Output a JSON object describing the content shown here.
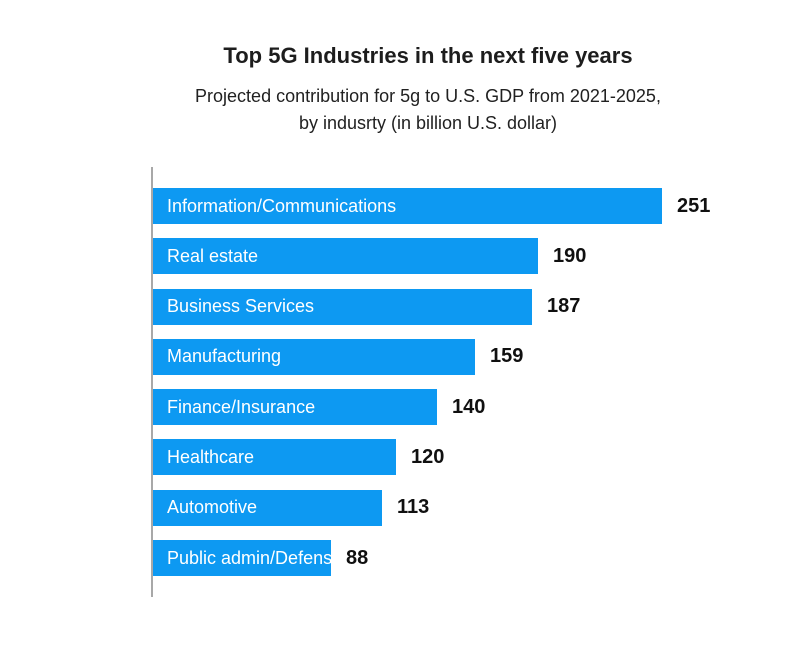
{
  "header": {
    "title": "Top 5G Industries in the next five years",
    "subtitle_line1": "Projected contribution for 5g to U.S. GDP from 2021-2025,",
    "subtitle_line2": "by indusrty (in billion U.S. dollar)"
  },
  "chart_data": {
    "type": "bar",
    "orientation": "horizontal",
    "title": "Top 5G Industries in the next five years",
    "subtitle": "Projected contribution for 5g to U.S. GDP from 2021-2025, by indusrty (in billion U.S. dollar)",
    "categories": [
      "Information/Communications",
      "Real estate",
      "Business Services",
      "Manufacturing",
      "Finance/Insurance",
      "Healthcare",
      "Automotive",
      "Public admin/Defense"
    ],
    "values": [
      251,
      190,
      187,
      159,
      140,
      120,
      113,
      88
    ],
    "xlabel": "",
    "ylabel": "",
    "xlim": [
      0,
      251
    ],
    "grid": false,
    "legend": false,
    "value_labels_position": "end-of-bar",
    "bar_color": "#0d99f2",
    "bar_label_color": "#ffffff",
    "value_label_color": "#101010",
    "axis_line_color": "#a8a8a8",
    "background_color": "#ffffff"
  }
}
